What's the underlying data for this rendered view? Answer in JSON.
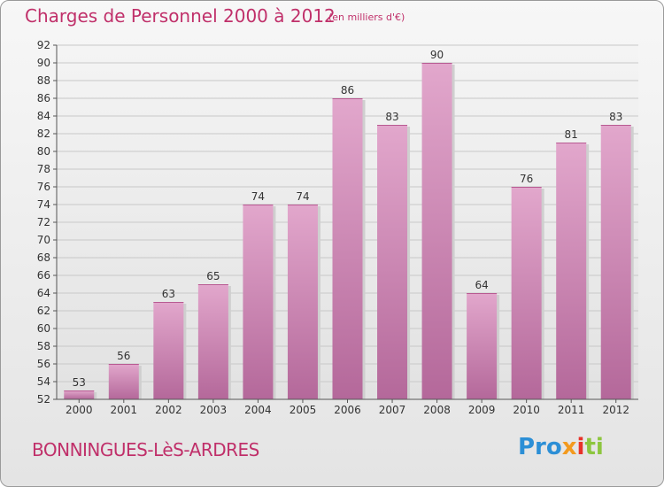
{
  "header": {
    "title": "Charges de Personnel 2000 à 2012",
    "unit": "(en milliers d'€)"
  },
  "footer": {
    "city": "BONNINGUES-LèS-ARDRES",
    "logo": "Proxiti"
  },
  "colors": {
    "accent": "#c0306a",
    "bar_light": "#e2a7cc",
    "bar_dark": "#b4689a"
  },
  "chart_data": {
    "type": "bar",
    "title": "Charges de Personnel 2000 à 2012",
    "subtitle": "(en milliers d'€)",
    "categories": [
      "2000",
      "2001",
      "2002",
      "2003",
      "2004",
      "2005",
      "2006",
      "2007",
      "2008",
      "2009",
      "2010",
      "2011",
      "2012"
    ],
    "values": [
      53,
      56,
      63,
      65,
      74,
      74,
      86,
      83,
      90,
      64,
      76,
      81,
      83
    ],
    "ylim": [
      52,
      92
    ],
    "yticks": [
      52,
      54,
      56,
      58,
      60,
      62,
      64,
      66,
      68,
      70,
      72,
      74,
      76,
      78,
      80,
      82,
      84,
      86,
      88,
      90,
      92
    ],
    "grid": true,
    "data_labels": true
  }
}
